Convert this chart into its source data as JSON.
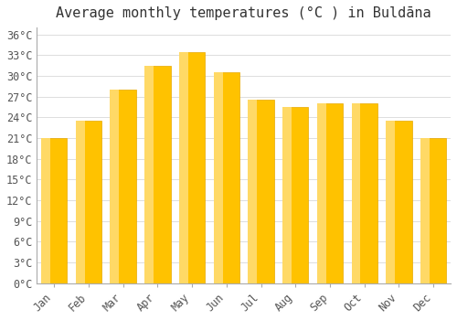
{
  "months": [
    "Jan",
    "Feb",
    "Mar",
    "Apr",
    "May",
    "Jun",
    "Jul",
    "Aug",
    "Sep",
    "Oct",
    "Nov",
    "Dec"
  ],
  "temperatures": [
    21,
    23.5,
    28,
    31.5,
    33.5,
    30.5,
    26.5,
    25.5,
    26,
    26,
    23.5,
    21
  ],
  "bar_color_main": "#FFC200",
  "bar_color_light": "#FFD966",
  "bar_edge_color": "#E8A800",
  "background_color": "#FFFFFF",
  "grid_color": "#DDDDDD",
  "title": "Average monthly temperatures (°C ) in Buldāna",
  "ylim": [
    0,
    37
  ],
  "ytick_step": 3,
  "title_fontsize": 11,
  "tick_fontsize": 8.5
}
